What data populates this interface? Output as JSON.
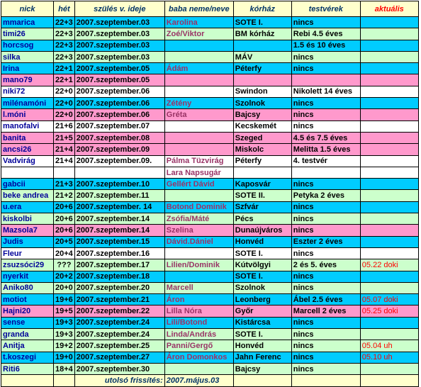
{
  "headers": [
    "nick",
    "hét",
    "szülés v. ideje",
    "baba neme/neve",
    "kórház",
    "testvérek",
    "aktuális"
  ],
  "rows": [
    {
      "color": "cyan",
      "nick": "mmarica",
      "week": "22+3",
      "date": "2007.szeptember.03",
      "baby": "Karolina",
      "hospital": "SOTE I.",
      "siblings": "nincs",
      "current": ""
    },
    {
      "color": "green",
      "nick": "timi26",
      "week": "22+3",
      "date": "2007.szeptember.03",
      "baby": "Zoé/Viktor",
      "hospital": "BM kórház",
      "siblings": "Rebi 4.5 éves",
      "current": ""
    },
    {
      "color": "cyan",
      "nick": "horcsog",
      "week": "22+3",
      "date": "2007.szeptember.03",
      "baby": "",
      "hospital": "",
      "siblings": "1.5 és 10 éves",
      "current": ""
    },
    {
      "color": "green",
      "nick": "silka",
      "week": "22+3",
      "date": "2007.szeptember.03",
      "baby": "",
      "hospital": "MÁV",
      "siblings": "nincs",
      "current": ""
    },
    {
      "color": "cyan",
      "nick": "Irina",
      "week": "22+1",
      "date": "2007.szeptember.05",
      "baby": "Ádám",
      "hospital": "Péterfy",
      "siblings": "nincs",
      "current": ""
    },
    {
      "color": "pink",
      "nick": "mano79",
      "week": "22+1",
      "date": "2007.szeptember.05",
      "baby": "",
      "hospital": "",
      "siblings": "",
      "current": ""
    },
    {
      "color": "plain",
      "nick": "niki72",
      "week": "22+0",
      "date": "2007.szeptember.06",
      "baby": "",
      "hospital": "Swindon",
      "siblings": "Nikolett 14 éves",
      "current": ""
    },
    {
      "color": "cyan",
      "nick": "milénamóni",
      "week": "22+0",
      "date": "2007.szeptember.06",
      "baby": "Zétény",
      "hospital": "Szolnok",
      "siblings": "nincs",
      "current": ""
    },
    {
      "color": "pink",
      "nick": "l.móni",
      "week": "22+0",
      "date": "2007.szeptember.06",
      "baby": "Gréta",
      "hospital": "Bajcsy",
      "siblings": "nincs",
      "current": ""
    },
    {
      "color": "plain",
      "nick": "manofalvi",
      "week": "21+6",
      "date": "2007.szeptember.07",
      "baby": "",
      "hospital": "Kecskemét",
      "siblings": "nincs",
      "current": ""
    },
    {
      "color": "pink",
      "nick": "banita",
      "week": "21+5",
      "date": "2007.szeptember.08",
      "baby": "",
      "hospital": "Szeged",
      "siblings": "4.5 és 7.5 éves",
      "current": ""
    },
    {
      "color": "pink",
      "nick": "ancsi26",
      "week": "21+4",
      "date": "2007.szeptember.09",
      "baby": "",
      "hospital": "Miskolc",
      "siblings": "Melitta 1.5 éves",
      "current": ""
    },
    {
      "color": "plain",
      "nick": "Vadvirág",
      "week": "21+4",
      "date": "2007.szeptember.09.",
      "baby": "Pálma Tüzvirág",
      "hospital": "Péterfy",
      "siblings": "4. testvér",
      "current": ""
    },
    {
      "color": "plain",
      "nick": "",
      "week": "",
      "date": "",
      "baby": "Lara Napsugár",
      "hospital": "",
      "siblings": "",
      "current": ""
    },
    {
      "color": "cyan",
      "nick": "gabcii",
      "week": "21+3",
      "date": "2007.szeptember.10",
      "baby": "Gellért Dávid",
      "hospital": "Kaposvár",
      "siblings": "nincs",
      "current": ""
    },
    {
      "color": "green",
      "nick": "beke andrea",
      "week": "21+2",
      "date": "2007.szeptember.11",
      "baby": "",
      "hospital": "SOTE II.",
      "siblings": "Petyka 2 éves",
      "current": ""
    },
    {
      "color": "cyan",
      "nick": "u.era",
      "week": "20+6",
      "date": "2007.szeptember. 14",
      "baby": "Botond Dominik",
      "hospital": "Szfvár",
      "siblings": "nincs",
      "current": ""
    },
    {
      "color": "green",
      "nick": "kiskolbi",
      "week": "20+6",
      "date": "2007.szeptember.14",
      "baby": "Zsófia/Máté",
      "hospital": "Pécs",
      "siblings": "nincs",
      "current": ""
    },
    {
      "color": "pink",
      "nick": "Mazsola7",
      "week": "20+6",
      "date": "2007.szeptember.14",
      "baby": "Szelina",
      "hospital": "Dunaújváros",
      "siblings": "nincs",
      "current": ""
    },
    {
      "color": "cyan",
      "nick": "Judis",
      "week": "20+5",
      "date": "2007.szeptember.15",
      "baby": "Dávid.Dániel",
      "hospital": "Honvéd",
      "siblings": "Eszter 2 éves",
      "current": ""
    },
    {
      "color": "plain",
      "nick": "Fleur",
      "week": "20+4",
      "date": "2007.szeptember.16",
      "baby": "",
      "hospital": "SOTE I.",
      "siblings": "nincs",
      "current": ""
    },
    {
      "color": "green",
      "nick": "zsuzsóci29",
      "week": "???",
      "date": "2007.szeptember.17",
      "baby": "Lilien/Dominik",
      "hospital": "Kútvölgyi",
      "siblings": "2 és 5. éves",
      "current": "05.22 doki"
    },
    {
      "color": "cyan",
      "nick": "nyerkit",
      "week": "20+2",
      "date": "2007.szeptember.18",
      "baby": "",
      "hospital": "SOTE I.",
      "siblings": "nincs",
      "current": ""
    },
    {
      "color": "green",
      "nick": "Aniko80",
      "week": "20+0",
      "date": "2007.szeptember.20",
      "baby": "Marcell",
      "hospital": "Szolnok",
      "siblings": "nincs",
      "current": ""
    },
    {
      "color": "cyan",
      "nick": "motiot",
      "week": "19+6",
      "date": "2007.szeptember.21",
      "baby": "Áron",
      "hospital": "Leonberg",
      "siblings": "Ábel 2.5 éves",
      "current": "05.07 doki"
    },
    {
      "color": "pink",
      "nick": "Hajni20",
      "week": "19+5",
      "date": "2007.szeptember.22",
      "baby": "Lilla Nóra",
      "hospital": "Győr",
      "siblings": "Marcell 2 éves",
      "current": "05.25 doki"
    },
    {
      "color": "cyan",
      "nick": "sense",
      "week": "19+3",
      "date": "2007.szeptember.24",
      "baby": "Lili/Botond",
      "hospital": "Kistárcsa",
      "siblings": "nincs",
      "current": ""
    },
    {
      "color": "green",
      "nick": "granda",
      "week": "19+3",
      "date": "2007.szeptember.24",
      "baby": "Linda/András",
      "hospital": "SOTE I.",
      "siblings": "nincs",
      "current": ""
    },
    {
      "color": "green",
      "nick": "Anitja",
      "week": "19+2",
      "date": "2007.szeptember.25",
      "baby": "Panni/Gergő",
      "hospital": "Honvéd",
      "siblings": "nincs",
      "current": "05.04 uh"
    },
    {
      "color": "cyan",
      "nick": "t.koszegi",
      "week": "19+0",
      "date": "2007.szeptember.27",
      "baby": "Áron Domonkos",
      "hospital": "Jahn Ferenc",
      "siblings": "nincs",
      "current": "05.10 uh"
    },
    {
      "color": "green",
      "nick": "Riti6",
      "week": "18+4",
      "date": "2007.szeptember.30",
      "baby": "",
      "hospital": "Bajcsy",
      "siblings": "nincs",
      "current": ""
    }
  ],
  "footer": {
    "label": "utolsó frissítés:",
    "value": "2007.május.03"
  }
}
